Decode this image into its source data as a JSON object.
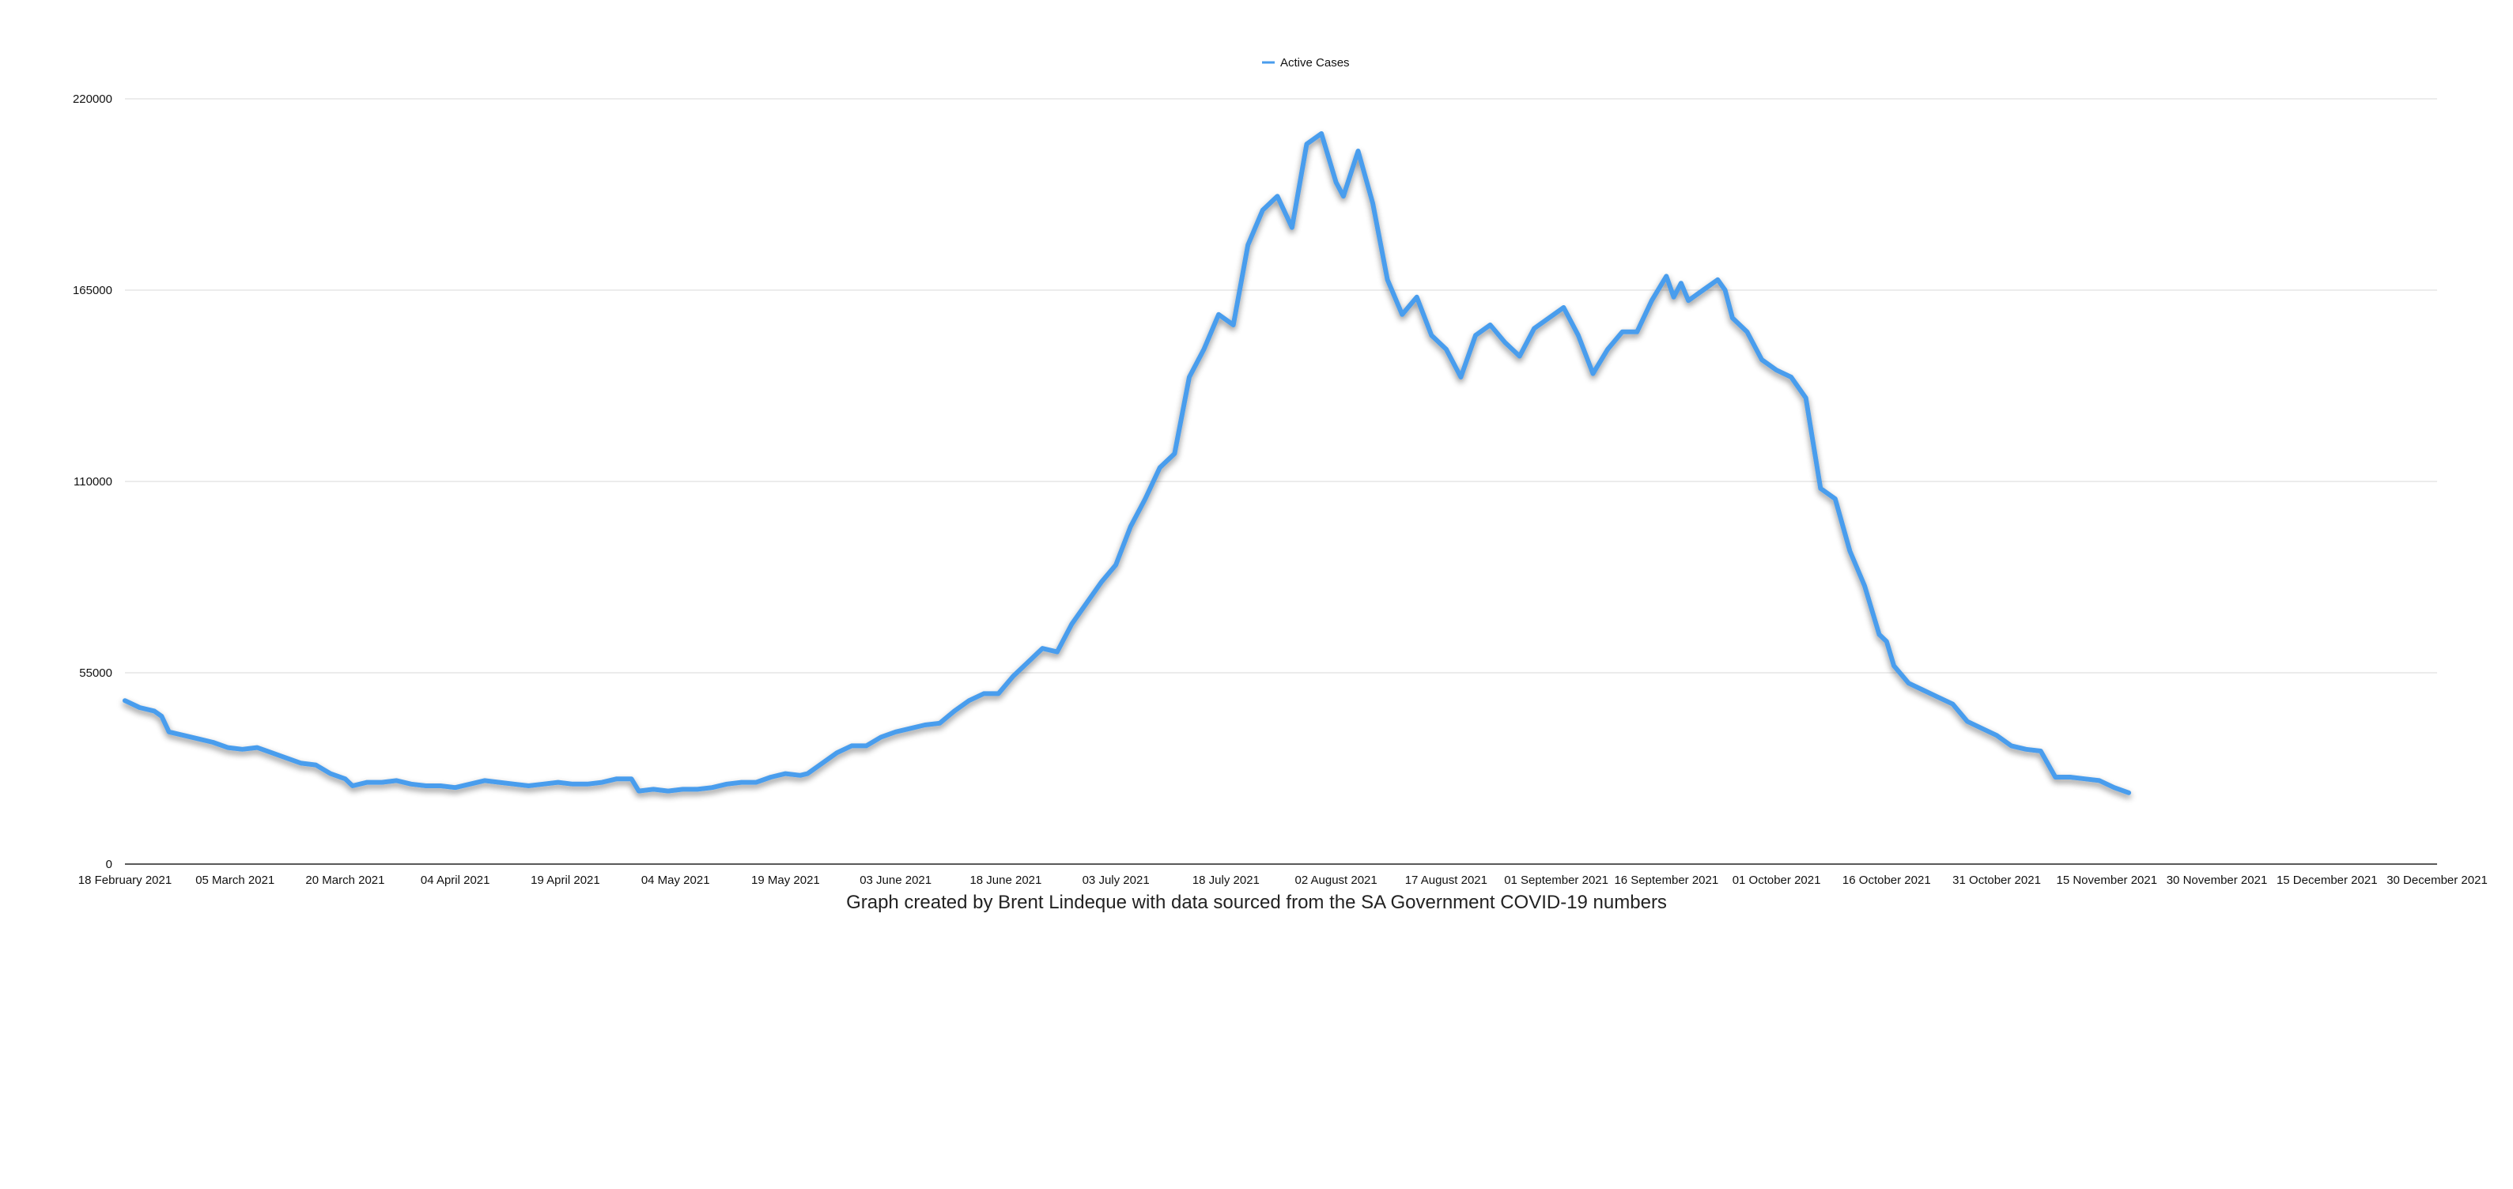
{
  "chart_data": {
    "type": "line",
    "caption": "Graph created by Brent Lindeque with data sourced from the SA Government COVID-19 numbers",
    "legend": {
      "position": "top-center"
    },
    "grid": {
      "horizontal": true,
      "vertical": false
    },
    "ylim": [
      0,
      220000
    ],
    "yticks": [
      "0",
      "55000",
      "110000",
      "165000",
      "220000"
    ],
    "x_range": [
      "2021-02-18",
      "2021-12-30"
    ],
    "xticks": [
      {
        "date": "2021-02-18",
        "label": "18 February 2021"
      },
      {
        "date": "2021-03-05",
        "label": "05 March 2021"
      },
      {
        "date": "2021-03-20",
        "label": "20 March 2021"
      },
      {
        "date": "2021-04-04",
        "label": "04 April 2021"
      },
      {
        "date": "2021-04-19",
        "label": "19 April 2021"
      },
      {
        "date": "2021-05-04",
        "label": "04 May 2021"
      },
      {
        "date": "2021-05-19",
        "label": "19 May 2021"
      },
      {
        "date": "2021-06-03",
        "label": "03 June 2021"
      },
      {
        "date": "2021-06-18",
        "label": "18 June 2021"
      },
      {
        "date": "2021-07-03",
        "label": "03 July 2021"
      },
      {
        "date": "2021-07-18",
        "label": "18 July 2021"
      },
      {
        "date": "2021-08-02",
        "label": "02 August 2021"
      },
      {
        "date": "2021-08-17",
        "label": "17 August 2021"
      },
      {
        "date": "2021-09-01",
        "label": "01 September 2021"
      },
      {
        "date": "2021-09-16",
        "label": "16 September 2021"
      },
      {
        "date": "2021-10-01",
        "label": "01 October 2021"
      },
      {
        "date": "2021-10-16",
        "label": "16 October 2021"
      },
      {
        "date": "2021-10-31",
        "label": "31 October 2021"
      },
      {
        "date": "2021-11-15",
        "label": "15 November 2021"
      },
      {
        "date": "2021-11-30",
        "label": "30 November 2021"
      },
      {
        "date": "2021-12-15",
        "label": "15 December 2021"
      },
      {
        "date": "2021-12-30",
        "label": "30 December 2021"
      }
    ],
    "series": [
      {
        "name": "Active Cases",
        "color": "#4a9ded",
        "points": [
          [
            "2021-02-18",
            47000
          ],
          [
            "2021-02-20",
            45000
          ],
          [
            "2021-02-22",
            44000
          ],
          [
            "2021-02-23",
            42500
          ],
          [
            "2021-02-24",
            38000
          ],
          [
            "2021-02-26",
            37000
          ],
          [
            "2021-02-28",
            36000
          ],
          [
            "2021-03-02",
            35000
          ],
          [
            "2021-03-04",
            33500
          ],
          [
            "2021-03-06",
            33000
          ],
          [
            "2021-03-08",
            33500
          ],
          [
            "2021-03-10",
            32000
          ],
          [
            "2021-03-12",
            30500
          ],
          [
            "2021-03-14",
            29000
          ],
          [
            "2021-03-16",
            28500
          ],
          [
            "2021-03-18",
            26000
          ],
          [
            "2021-03-20",
            24500
          ],
          [
            "2021-03-21",
            22500
          ],
          [
            "2021-03-23",
            23500
          ],
          [
            "2021-03-25",
            23500
          ],
          [
            "2021-03-27",
            24000
          ],
          [
            "2021-03-29",
            23000
          ],
          [
            "2021-03-31",
            22500
          ],
          [
            "2021-04-02",
            22500
          ],
          [
            "2021-04-04",
            22000
          ],
          [
            "2021-04-06",
            23000
          ],
          [
            "2021-04-08",
            24000
          ],
          [
            "2021-04-10",
            23500
          ],
          [
            "2021-04-12",
            23000
          ],
          [
            "2021-04-14",
            22500
          ],
          [
            "2021-04-16",
            23000
          ],
          [
            "2021-04-18",
            23500
          ],
          [
            "2021-04-20",
            23000
          ],
          [
            "2021-04-22",
            23000
          ],
          [
            "2021-04-24",
            23500
          ],
          [
            "2021-04-26",
            24500
          ],
          [
            "2021-04-28",
            24500
          ],
          [
            "2021-04-29",
            21000
          ],
          [
            "2021-05-01",
            21500
          ],
          [
            "2021-05-03",
            21000
          ],
          [
            "2021-05-05",
            21500
          ],
          [
            "2021-05-07",
            21500
          ],
          [
            "2021-05-09",
            22000
          ],
          [
            "2021-05-11",
            23000
          ],
          [
            "2021-05-13",
            23500
          ],
          [
            "2021-05-15",
            23500
          ],
          [
            "2021-05-17",
            25000
          ],
          [
            "2021-05-19",
            26000
          ],
          [
            "2021-05-21",
            25500
          ],
          [
            "2021-05-22",
            26000
          ],
          [
            "2021-05-24",
            29000
          ],
          [
            "2021-05-26",
            32000
          ],
          [
            "2021-05-28",
            34000
          ],
          [
            "2021-05-30",
            34000
          ],
          [
            "2021-06-01",
            36500
          ],
          [
            "2021-06-03",
            38000
          ],
          [
            "2021-06-05",
            39000
          ],
          [
            "2021-06-07",
            40000
          ],
          [
            "2021-06-09",
            40500
          ],
          [
            "2021-06-11",
            44000
          ],
          [
            "2021-06-13",
            47000
          ],
          [
            "2021-06-15",
            49000
          ],
          [
            "2021-06-17",
            49000
          ],
          [
            "2021-06-19",
            54000
          ],
          [
            "2021-06-21",
            58000
          ],
          [
            "2021-06-23",
            62000
          ],
          [
            "2021-06-25",
            61000
          ],
          [
            "2021-06-27",
            69000
          ],
          [
            "2021-06-29",
            75000
          ],
          [
            "2021-07-01",
            81000
          ],
          [
            "2021-07-03",
            86000
          ],
          [
            "2021-07-05",
            97000
          ],
          [
            "2021-07-07",
            105000
          ],
          [
            "2021-07-09",
            114000
          ],
          [
            "2021-07-11",
            118000
          ],
          [
            "2021-07-13",
            140000
          ],
          [
            "2021-07-15",
            148000
          ],
          [
            "2021-07-17",
            158000
          ],
          [
            "2021-07-19",
            155000
          ],
          [
            "2021-07-21",
            178000
          ],
          [
            "2021-07-23",
            188000
          ],
          [
            "2021-07-25",
            192000
          ],
          [
            "2021-07-27",
            183000
          ],
          [
            "2021-07-29",
            207000
          ],
          [
            "2021-07-31",
            210000
          ],
          [
            "2021-08-02",
            196000
          ],
          [
            "2021-08-03",
            192000
          ],
          [
            "2021-08-05",
            205000
          ],
          [
            "2021-08-07",
            190000
          ],
          [
            "2021-08-09",
            168000
          ],
          [
            "2021-08-11",
            158000
          ],
          [
            "2021-08-13",
            163000
          ],
          [
            "2021-08-15",
            152000
          ],
          [
            "2021-08-17",
            148000
          ],
          [
            "2021-08-19",
            140000
          ],
          [
            "2021-08-21",
            152000
          ],
          [
            "2021-08-23",
            155000
          ],
          [
            "2021-08-25",
            150000
          ],
          [
            "2021-08-27",
            146000
          ],
          [
            "2021-08-29",
            154000
          ],
          [
            "2021-08-31",
            157000
          ],
          [
            "2021-09-02",
            160000
          ],
          [
            "2021-09-04",
            152000
          ],
          [
            "2021-09-06",
            141000
          ],
          [
            "2021-09-08",
            148000
          ],
          [
            "2021-09-10",
            153000
          ],
          [
            "2021-09-12",
            153000
          ],
          [
            "2021-09-14",
            162000
          ],
          [
            "2021-09-16",
            169000
          ],
          [
            "2021-09-17",
            163000
          ],
          [
            "2021-09-18",
            167000
          ],
          [
            "2021-09-19",
            162000
          ],
          [
            "2021-09-21",
            165000
          ],
          [
            "2021-09-23",
            168000
          ],
          [
            "2021-09-24",
            165000
          ],
          [
            "2021-09-25",
            157000
          ],
          [
            "2021-09-27",
            153000
          ],
          [
            "2021-09-29",
            145000
          ],
          [
            "2021-10-01",
            142000
          ],
          [
            "2021-10-03",
            140000
          ],
          [
            "2021-10-05",
            134000
          ],
          [
            "2021-10-07",
            108000
          ],
          [
            "2021-10-09",
            105000
          ],
          [
            "2021-10-11",
            90000
          ],
          [
            "2021-10-13",
            80000
          ],
          [
            "2021-10-15",
            66000
          ],
          [
            "2021-10-16",
            64000
          ],
          [
            "2021-10-17",
            57000
          ],
          [
            "2021-10-19",
            52000
          ],
          [
            "2021-10-21",
            50000
          ],
          [
            "2021-10-23",
            48000
          ],
          [
            "2021-10-25",
            46000
          ],
          [
            "2021-10-27",
            41000
          ],
          [
            "2021-10-29",
            39000
          ],
          [
            "2021-10-31",
            37000
          ],
          [
            "2021-11-02",
            34000
          ],
          [
            "2021-11-04",
            33000
          ],
          [
            "2021-11-06",
            32500
          ],
          [
            "2021-11-08",
            25000
          ],
          [
            "2021-11-10",
            25000
          ],
          [
            "2021-11-12",
            24500
          ],
          [
            "2021-11-14",
            24000
          ],
          [
            "2021-11-16",
            22000
          ],
          [
            "2021-11-18",
            20500
          ]
        ]
      }
    ]
  }
}
